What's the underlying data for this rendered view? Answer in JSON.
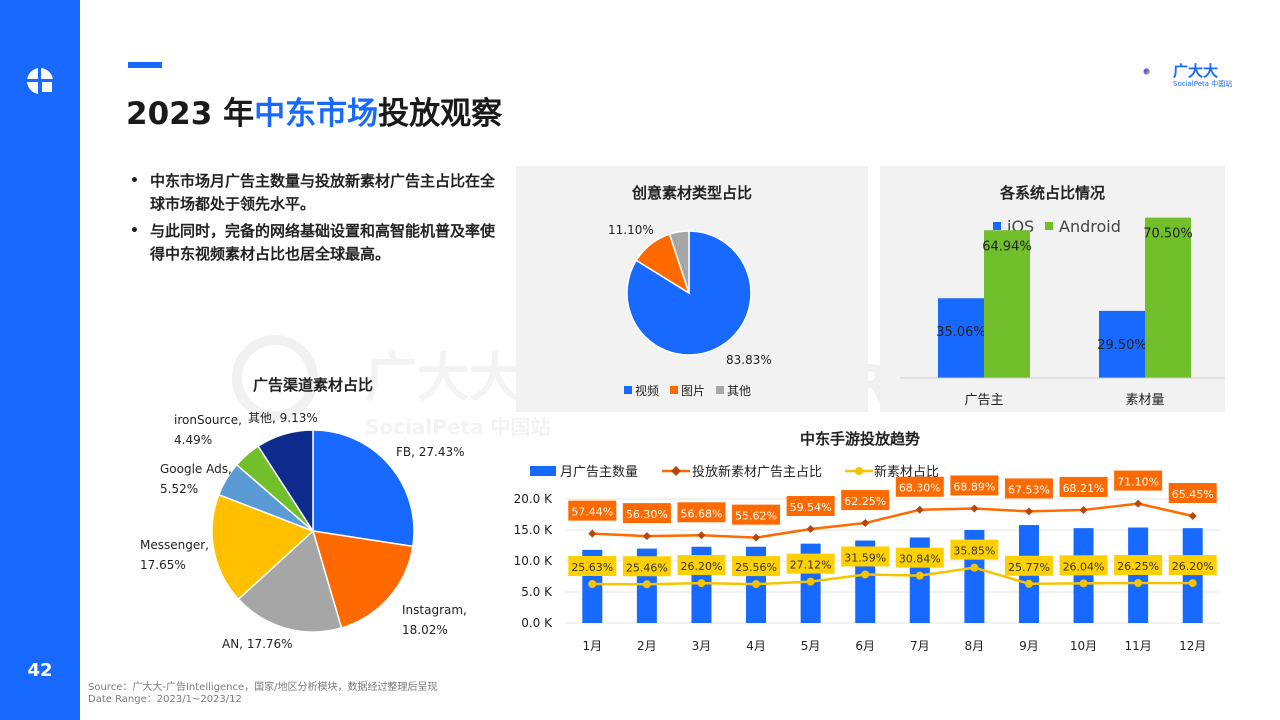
{
  "page": {
    "number": "42",
    "title_prefix": "2023 年",
    "title_highlight": "中东市场",
    "title_suffix": "投放观察"
  },
  "brand": {
    "name": "广大大",
    "sub": "SocialPeta 中国站"
  },
  "bullets": [
    "中东市场月广告主数量与投放新素材广告主占比在全球市场都处于领先水平。",
    "与此同时，完备的网络基础设置和高智能机普及率使得中东视频素材占比也居全球最高。"
  ],
  "watermark": {
    "text1": "广大大",
    "text2": "SocialPeta 中国站",
    "text3": "TRADPLUS"
  },
  "source": {
    "line1": "Source：广大大-广告Intelligence，国家/地区分析模块，数据经过整理后呈现",
    "line2": "Date Range：2023/1~2023/12"
  },
  "colors": {
    "blue": "#1769ff",
    "orange": "#ff6a00",
    "gray": "#a6a6a6",
    "green": "#70bf2b",
    "yellow": "#f5c400",
    "navy": "#0d2a8c",
    "lightblue": "#5b9bd5"
  },
  "chart_data": [
    {
      "id": "channel",
      "type": "pie",
      "title": "广告渠道素材占比",
      "slices": [
        {
          "label": "FB",
          "value": 27.43,
          "text": "FB, 27.43%",
          "color": "#1769ff"
        },
        {
          "label": "Instagram",
          "value": 18.02,
          "text": "Instagram,\n18.02%",
          "color": "#ff6a00"
        },
        {
          "label": "AN",
          "value": 17.76,
          "text": "AN, 17.76%",
          "color": "#a6a6a6"
        },
        {
          "label": "Messenger",
          "value": 17.65,
          "text": "Messenger,\n17.65%",
          "color": "#ffc000"
        },
        {
          "label": "Google Ads",
          "value": 5.52,
          "text": "Google Ads,\n5.52%",
          "color": "#5b9bd5"
        },
        {
          "label": "ironSource",
          "value": 4.49,
          "text": "ironSource,\n4.49%",
          "color": "#70bf2b"
        },
        {
          "label": "其他",
          "value": 9.13,
          "text": "其他, 9.13%",
          "color": "#0d2a8c"
        }
      ]
    },
    {
      "id": "creative",
      "type": "pie",
      "title": "创意素材类型占比",
      "slices": [
        {
          "label": "视频",
          "value": 83.83,
          "text": "83.83%",
          "color": "#1769ff"
        },
        {
          "label": "图片",
          "value": 11.1,
          "text": "11.10%",
          "color": "#ff6a00"
        },
        {
          "label": "其他",
          "value": 5.07,
          "text": "",
          "color": "#a6a6a6"
        }
      ],
      "legend": [
        "视频",
        "图片",
        "其他"
      ]
    },
    {
      "id": "os",
      "type": "bar",
      "title": "各系统占比情况",
      "categories": [
        "广告主",
        "素材量"
      ],
      "series": [
        {
          "name": "iOS",
          "values": [
            35.06,
            29.5
          ],
          "labels": [
            "35.06%",
            "29.50%"
          ],
          "color": "#1769ff"
        },
        {
          "name": "Android",
          "values": [
            64.94,
            70.5
          ],
          "labels": [
            "64.94%",
            "70.50%"
          ],
          "color": "#70bf2b"
        }
      ],
      "ylim": [
        0,
        80
      ]
    },
    {
      "id": "trend",
      "type": "bar",
      "title": "中东手游投放趋势",
      "categories": [
        "1月",
        "2月",
        "3月",
        "4月",
        "5月",
        "6月",
        "7月",
        "8月",
        "9月",
        "10月",
        "11月",
        "12月"
      ],
      "yticks": [
        "20.0 K",
        "15.0 K",
        "10.0 K",
        "5.0 K",
        "0.0 K"
      ],
      "ylim": [
        0,
        20000
      ],
      "series": [
        {
          "name": "月广告主数量",
          "kind": "bar",
          "color": "#1769ff",
          "values": [
            11800,
            12000,
            12300,
            12300,
            12800,
            13300,
            13800,
            15000,
            15800,
            15300,
            15400,
            15300
          ]
        },
        {
          "name": "投放新素材广告主占比",
          "kind": "line",
          "color": "#ff6a00",
          "values": [
            57.44,
            56.3,
            56.68,
            55.62,
            59.54,
            62.25,
            68.3,
            68.89,
            67.53,
            68.21,
            71.1,
            65.45
          ],
          "labels": [
            "57.44%",
            "56.30%",
            "56.68%",
            "55.62%",
            "59.54%",
            "62.25%",
            "68.30%",
            "68.89%",
            "67.53%",
            "68.21%",
            "71.10%",
            "65.45%"
          ]
        },
        {
          "name": "新素材占比",
          "kind": "line",
          "color": "#f5c400",
          "values": [
            25.63,
            25.46,
            26.2,
            25.56,
            27.12,
            31.59,
            30.84,
            35.85,
            25.77,
            26.04,
            26.25,
            26.2
          ],
          "labels": [
            "25.63%",
            "25.46%",
            "26.20%",
            "25.56%",
            "27.12%",
            "31.59%",
            "30.84%",
            "35.85%",
            "25.77%",
            "26.04%",
            "26.25%",
            "26.20%"
          ]
        }
      ]
    }
  ]
}
